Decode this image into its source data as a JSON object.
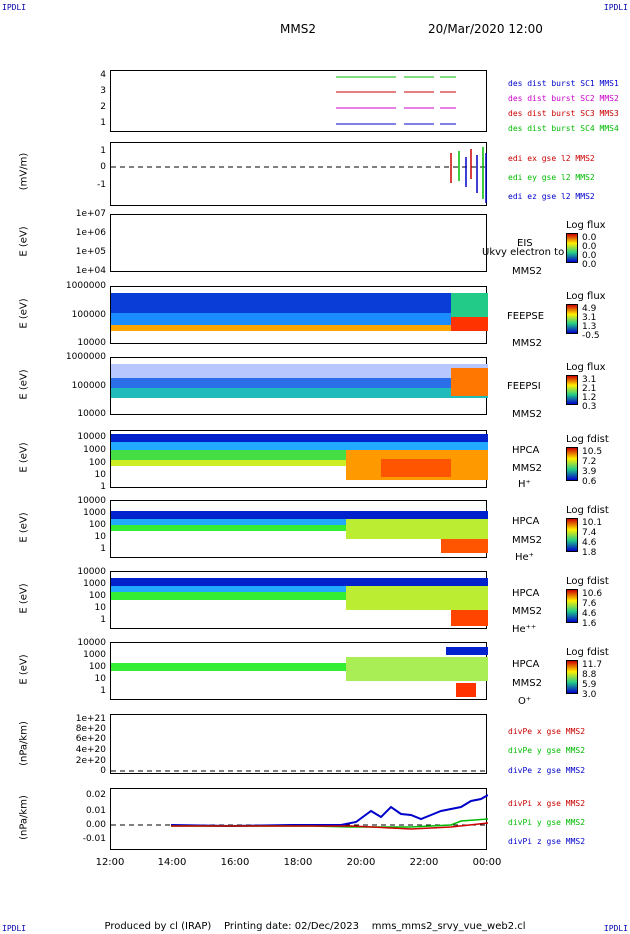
{
  "corners": {
    "tl": "IPDLI",
    "tr": "IPDLI",
    "bl": "IPDLI",
    "br": "IPDLI"
  },
  "header": {
    "sc": "MMS2",
    "date": "20/Mar/2020 12:00"
  },
  "footer": {
    "left": "Produced by cl (IRAP)",
    "mid": "Printing date: 02/Dec/2023",
    "right": "mms_mms2_srvy_vue_web2.cl"
  },
  "chart_data": {
    "type": "multi-panel",
    "xticks": [
      "12:00",
      "14:00",
      "16:00",
      "18:00",
      "20:00",
      "22:00",
      "00:00"
    ],
    "panels": [
      {
        "id": "burst",
        "ylabel": "",
        "yticks": [
          "4",
          "3",
          "2",
          "1"
        ],
        "legend": [
          {
            "text": "des dist burst SC1 MMS1",
            "color": "#0000cc"
          },
          {
            "text": "des dist burst SC2 MMS2",
            "color": "#cc00cc"
          },
          {
            "text": "des dist burst SC3 MMS3",
            "color": "#cc0000"
          },
          {
            "text": "des dist burst SC4 MMS4",
            "color": "#00bb00"
          }
        ]
      },
      {
        "id": "edi",
        "ylabel": "(mV/m)",
        "yticks": [
          "1",
          "0",
          "-1"
        ],
        "legend": [
          {
            "text": "edi ex gse l2 MMS2",
            "color": "#cc0000"
          },
          {
            "text": "edi ey gse l2 MMS2",
            "color": "#00bb00"
          },
          {
            "text": "edi ez gse l2 MMS2",
            "color": "#0000cc"
          }
        ]
      },
      {
        "id": "eis",
        "ylabel": "E (eV)",
        "yticks": [
          "1e+07",
          "1e+06",
          "1e+05",
          "1e+04"
        ],
        "inst": [
          "EIS",
          "MMS2"
        ],
        "overlay": "Ukvy electron to",
        "cbtitle": "Log flux",
        "cbvals": [
          "0.0",
          "0.0",
          "0.0",
          "0.0"
        ]
      },
      {
        "id": "feepse",
        "ylabel": "E (eV)",
        "yticks": [
          "1000000",
          "100000",
          "10000"
        ],
        "inst": [
          "FEEPSE",
          "MMS2"
        ],
        "cbtitle": "Log flux",
        "cbvals": [
          "4.9",
          "3.1",
          "1.3",
          "-0.5"
        ]
      },
      {
        "id": "feepsi",
        "ylabel": "E (eV)",
        "yticks": [
          "1000000",
          "100000",
          "10000"
        ],
        "inst": [
          "FEEPSI",
          "MMS2"
        ],
        "cbtitle": "Log flux",
        "cbvals": [
          "3.1",
          "2.1",
          "1.2",
          "0.3"
        ]
      },
      {
        "id": "hpcah",
        "ylabel": "E (eV)",
        "yticks": [
          "10000",
          "1000",
          "100",
          "10",
          "1"
        ],
        "inst": [
          "HPCA",
          "MMS2",
          "H⁺"
        ],
        "cbtitle": "Log fdist",
        "cbvals": [
          "10.5",
          "7.2",
          "3.9",
          "0.6"
        ]
      },
      {
        "id": "hpcahe",
        "ylabel": "E (eV)",
        "yticks": [
          "10000",
          "1000",
          "100",
          "10",
          "1"
        ],
        "inst": [
          "HPCA",
          "MMS2",
          "He⁺"
        ],
        "cbtitle": "Log fdist",
        "cbvals": [
          "10.1",
          "7.4",
          "4.6",
          "1.8"
        ]
      },
      {
        "id": "hpcahepp",
        "ylabel": "E (eV)",
        "yticks": [
          "10000",
          "1000",
          "100",
          "10",
          "1"
        ],
        "inst": [
          "HPCA",
          "MMS2",
          "He⁺⁺"
        ],
        "cbtitle": "Log fdist",
        "cbvals": [
          "10.6",
          "7.6",
          "4.6",
          "1.6"
        ]
      },
      {
        "id": "hpcao",
        "ylabel": "E (eV)",
        "yticks": [
          "10000",
          "1000",
          "100",
          "10",
          "1"
        ],
        "inst": [
          "HPCA",
          "MMS2",
          "O⁺"
        ],
        "cbtitle": "Log fdist",
        "cbvals": [
          "11.7",
          "8.8",
          "5.9",
          "3.0"
        ]
      },
      {
        "id": "divpe",
        "ylabel": "(nPa/km)",
        "yticks": [
          "1e+21",
          "8e+20",
          "6e+20",
          "4e+20",
          "2e+20",
          "0"
        ],
        "legend": [
          {
            "text": "divPe x gse MMS2",
            "color": "#cc0000"
          },
          {
            "text": "divPe y gse MMS2",
            "color": "#00bb00"
          },
          {
            "text": "divPe z gse MMS2",
            "color": "#0000cc"
          }
        ]
      },
      {
        "id": "divpi",
        "ylabel": "(nPa/km)",
        "yticks": [
          "0.02",
          "0.01",
          "0.00",
          "-0.01"
        ],
        "legend": [
          {
            "text": "divPi x gse MMS2",
            "color": "#cc0000"
          },
          {
            "text": "divPi y gse MMS2",
            "color": "#00bb00"
          },
          {
            "text": "divPi z gse MMS2",
            "color": "#0000cc"
          }
        ]
      }
    ]
  }
}
